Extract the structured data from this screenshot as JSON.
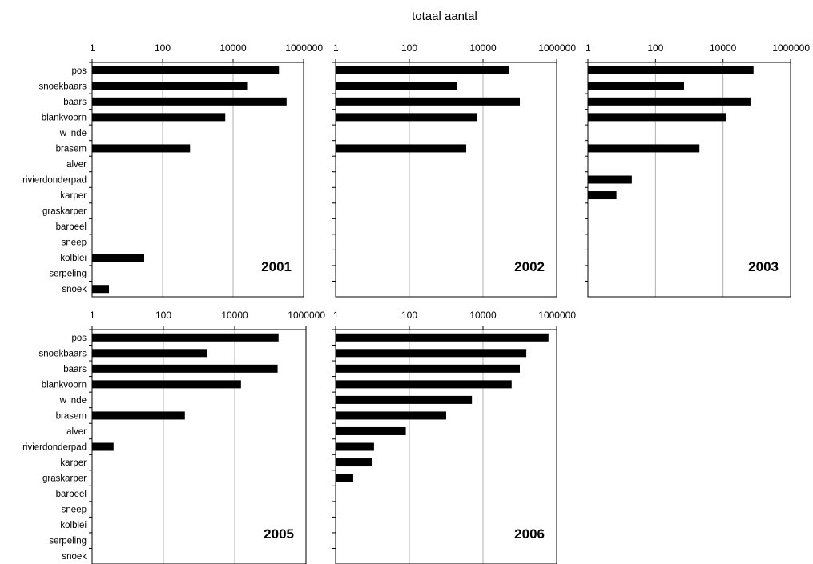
{
  "title": "totaal aantal",
  "chart_data": [
    {
      "type": "bar",
      "orientation": "horizontal",
      "panel_label": "2001",
      "xscale": "log",
      "xlim": [
        1,
        1000000
      ],
      "xticks": [
        "1",
        "100",
        "10000",
        "1000000"
      ],
      "grid": "vertical",
      "categories": [
        "pos",
        "snoekbaars",
        "baars",
        "blankvoorn",
        "w inde",
        "brasem",
        "alver",
        "rivierdonderpad",
        "karper",
        "graskarper",
        "barbeel",
        "sneep",
        "kolblei",
        "serpeling",
        "snoek"
      ],
      "values": [
        200000,
        25000,
        330000,
        6000,
        0,
        600,
        0,
        0,
        0,
        0,
        0,
        0,
        30,
        0,
        3
      ]
    },
    {
      "type": "bar",
      "orientation": "horizontal",
      "panel_label": "2002",
      "xscale": "log",
      "xlim": [
        1,
        1000000
      ],
      "xticks": [
        "1",
        "100",
        "10000",
        "1000000"
      ],
      "grid": "vertical",
      "categories": [
        "pos",
        "snoekbaars",
        "baars",
        "blankvoorn",
        "w inde",
        "brasem",
        "alver",
        "rivierdonderpad",
        "karper",
        "graskarper",
        "barbeel",
        "sneep",
        "kolblei",
        "serpeling",
        "snoek"
      ],
      "values": [
        50000,
        2000,
        100000,
        7000,
        0,
        3500,
        0,
        0,
        0,
        0,
        0,
        0,
        0,
        0,
        0
      ]
    },
    {
      "type": "bar",
      "orientation": "horizontal",
      "panel_label": "2003",
      "xscale": "log",
      "xlim": [
        1,
        1000000
      ],
      "xticks": [
        "1",
        "100",
        "10000",
        "1000000"
      ],
      "grid": "vertical",
      "categories": [
        "pos",
        "snoekbaars",
        "baars",
        "blankvoorn",
        "w inde",
        "brasem",
        "alver",
        "rivierdonderpad",
        "karper",
        "graskarper",
        "barbeel",
        "sneep",
        "kolblei",
        "serpeling",
        "snoek"
      ],
      "values": [
        80000,
        700,
        65000,
        12000,
        0,
        2000,
        0,
        20,
        7,
        0,
        0,
        0,
        0,
        0,
        0
      ]
    },
    {
      "type": "bar",
      "orientation": "horizontal",
      "panel_label": "2005",
      "xscale": "log",
      "xlim": [
        1,
        1000000
      ],
      "xticks": [
        "1",
        "100",
        "10000",
        "1000000"
      ],
      "grid": "vertical",
      "categories": [
        "pos",
        "snoekbaars",
        "baars",
        "blankvoorn",
        "w inde",
        "brasem",
        "alver",
        "rivierdonderpad",
        "karper",
        "graskarper",
        "barbeel",
        "sneep",
        "kolblei",
        "serpeling",
        "snoek"
      ],
      "values": [
        170000,
        1700,
        160000,
        15000,
        0,
        400,
        0,
        4,
        0,
        0,
        0,
        0,
        0,
        0,
        0
      ]
    },
    {
      "type": "bar",
      "orientation": "horizontal",
      "panel_label": "2006",
      "xscale": "log",
      "xlim": [
        1,
        1000000
      ],
      "xticks": [
        "1",
        "100",
        "10000",
        "1000000"
      ],
      "grid": "vertical",
      "categories": [
        "pos",
        "snoekbaars",
        "baars",
        "blankvoorn",
        "w inde",
        "brasem",
        "alver",
        "rivierdonderpad",
        "karper",
        "graskarper",
        "barbeel",
        "sneep",
        "kolblei",
        "serpeling",
        "snoek"
      ],
      "values": [
        600000,
        150000,
        100000,
        60000,
        5000,
        1000,
        80,
        11,
        10,
        3,
        0,
        0,
        0,
        0,
        0
      ]
    }
  ]
}
